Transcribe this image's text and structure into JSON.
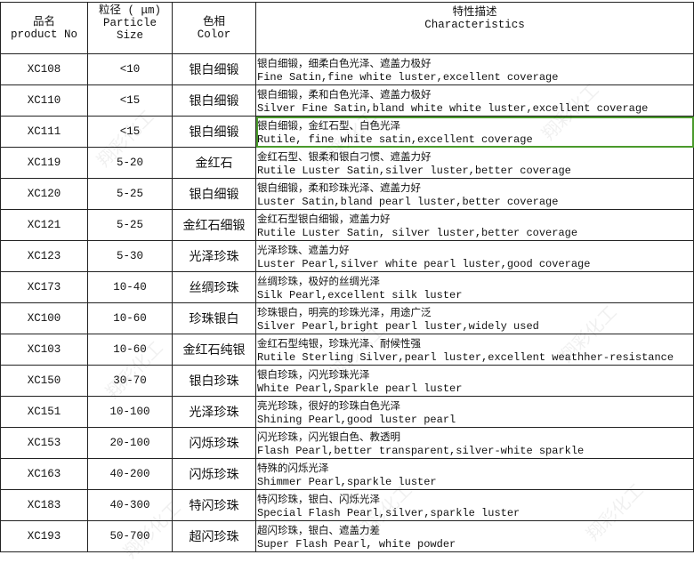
{
  "header": {
    "product_cn": "品名",
    "product_en": "product No",
    "size_cn": "粒径 ( μm)",
    "size_en1": "Particle",
    "size_en2": "Size",
    "color_cn": "色相",
    "color_en": "Color",
    "desc_cn": "特性描述",
    "desc_en": "Characteristics"
  },
  "watermark": "翔彩化工",
  "accent_color": "#4a9a2c",
  "selected_row": 2,
  "rows": [
    {
      "no": "XC108",
      "size": "<10",
      "color": "银白细锻",
      "cn": "银白细锻，细柔白色光泽、遮盖力极好",
      "en": "Fine Satin,fine white luster,excellent coverage"
    },
    {
      "no": "XC110",
      "size": "<15",
      "color": "银白细锻",
      "cn": "银白细锻，柔和白色光泽、遮盖力极好",
      "en": "Silver Fine Satin,bland white white luster,excellent coverage"
    },
    {
      "no": "XC111",
      "size": "<15",
      "color": "银白细锻",
      "cn": "银白细锻，金红石型、白色光泽",
      "en": "Rutile, fine white satin,excellent coverage"
    },
    {
      "no": "XC119",
      "size": "5-20",
      "color": "金红石",
      "cn": "金红石型、银柔和银白刁惯、遮盖力好",
      "en": "Rutile Luster Satin,silver luster,better coverage"
    },
    {
      "no": "XC120",
      "size": "5-25",
      "color": "银白细锻",
      "cn": "银白细锻，柔和珍珠光泽、遮盖力好",
      "en": "Luster Satin,bland pearl luster,better coverage"
    },
    {
      "no": "XC121",
      "size": "5-25",
      "color": "金红石细锻",
      "cn": "金红石型银白细锻，遮盖力好",
      "en": "Rutile Luster Satin, silver luster,better coverage"
    },
    {
      "no": "XC123",
      "size": "5-30",
      "color": "光泽珍珠",
      "cn": "光泽珍珠、遮盖力好",
      "en": "Luster Pearl,silver white pearl luster,good coverage"
    },
    {
      "no": "XC173",
      "size": "10-40",
      "color": "丝绸珍珠",
      "cn": "丝绸珍珠，极好的丝绸光泽",
      "en": "Silk Pearl,excellent silk luster"
    },
    {
      "no": "XC100",
      "size": "10-60",
      "color": "珍珠银白",
      "cn": "珍珠银白，明亮的珍珠光泽，用途广泛",
      "en": "Silver Pearl,bright pearl luster,widely used"
    },
    {
      "no": "XC103",
      "size": "10-60",
      "color": "金红石纯银",
      "cn": "金红石型纯银，珍珠光泽、耐候性强",
      "en": "Rutile Sterling Silver,pearl luster,excellent weathher-resistance"
    },
    {
      "no": "XC150",
      "size": "30-70",
      "color": "银白珍珠",
      "cn": "银白珍珠，闪光珍珠光泽",
      "en": "White Pearl,Sparkle pearl luster"
    },
    {
      "no": "XC151",
      "size": "10-100",
      "color": "光泽珍珠",
      "cn": "亮光珍珠，很好的珍珠白色光泽",
      "en": "Shining Pearl,good luster pearl"
    },
    {
      "no": "XC153",
      "size": "20-100",
      "color": "闪烁珍珠",
      "cn": "闪光珍珠，闪光银白色、教透明",
      "en": "Flash Pearl,better transparent,silver-white sparkle"
    },
    {
      "no": "XC163",
      "size": "40-200",
      "color": "闪烁珍珠",
      "cn": "特殊的闪烁光泽",
      "en": "Shimmer Pearl,sparkle luster"
    },
    {
      "no": "XC183",
      "size": "40-300",
      "color": "特闪珍珠",
      "cn": "特闪珍珠，银白、闪烁光泽",
      "en": "Special Flash Pearl,silver,sparkle luster"
    },
    {
      "no": "XC193",
      "size": "50-700",
      "color": "超闪珍珠",
      "cn": "超闪珍珠，银白、遮盖力差",
      "en": "Super Flash Pearl, white powder"
    }
  ]
}
